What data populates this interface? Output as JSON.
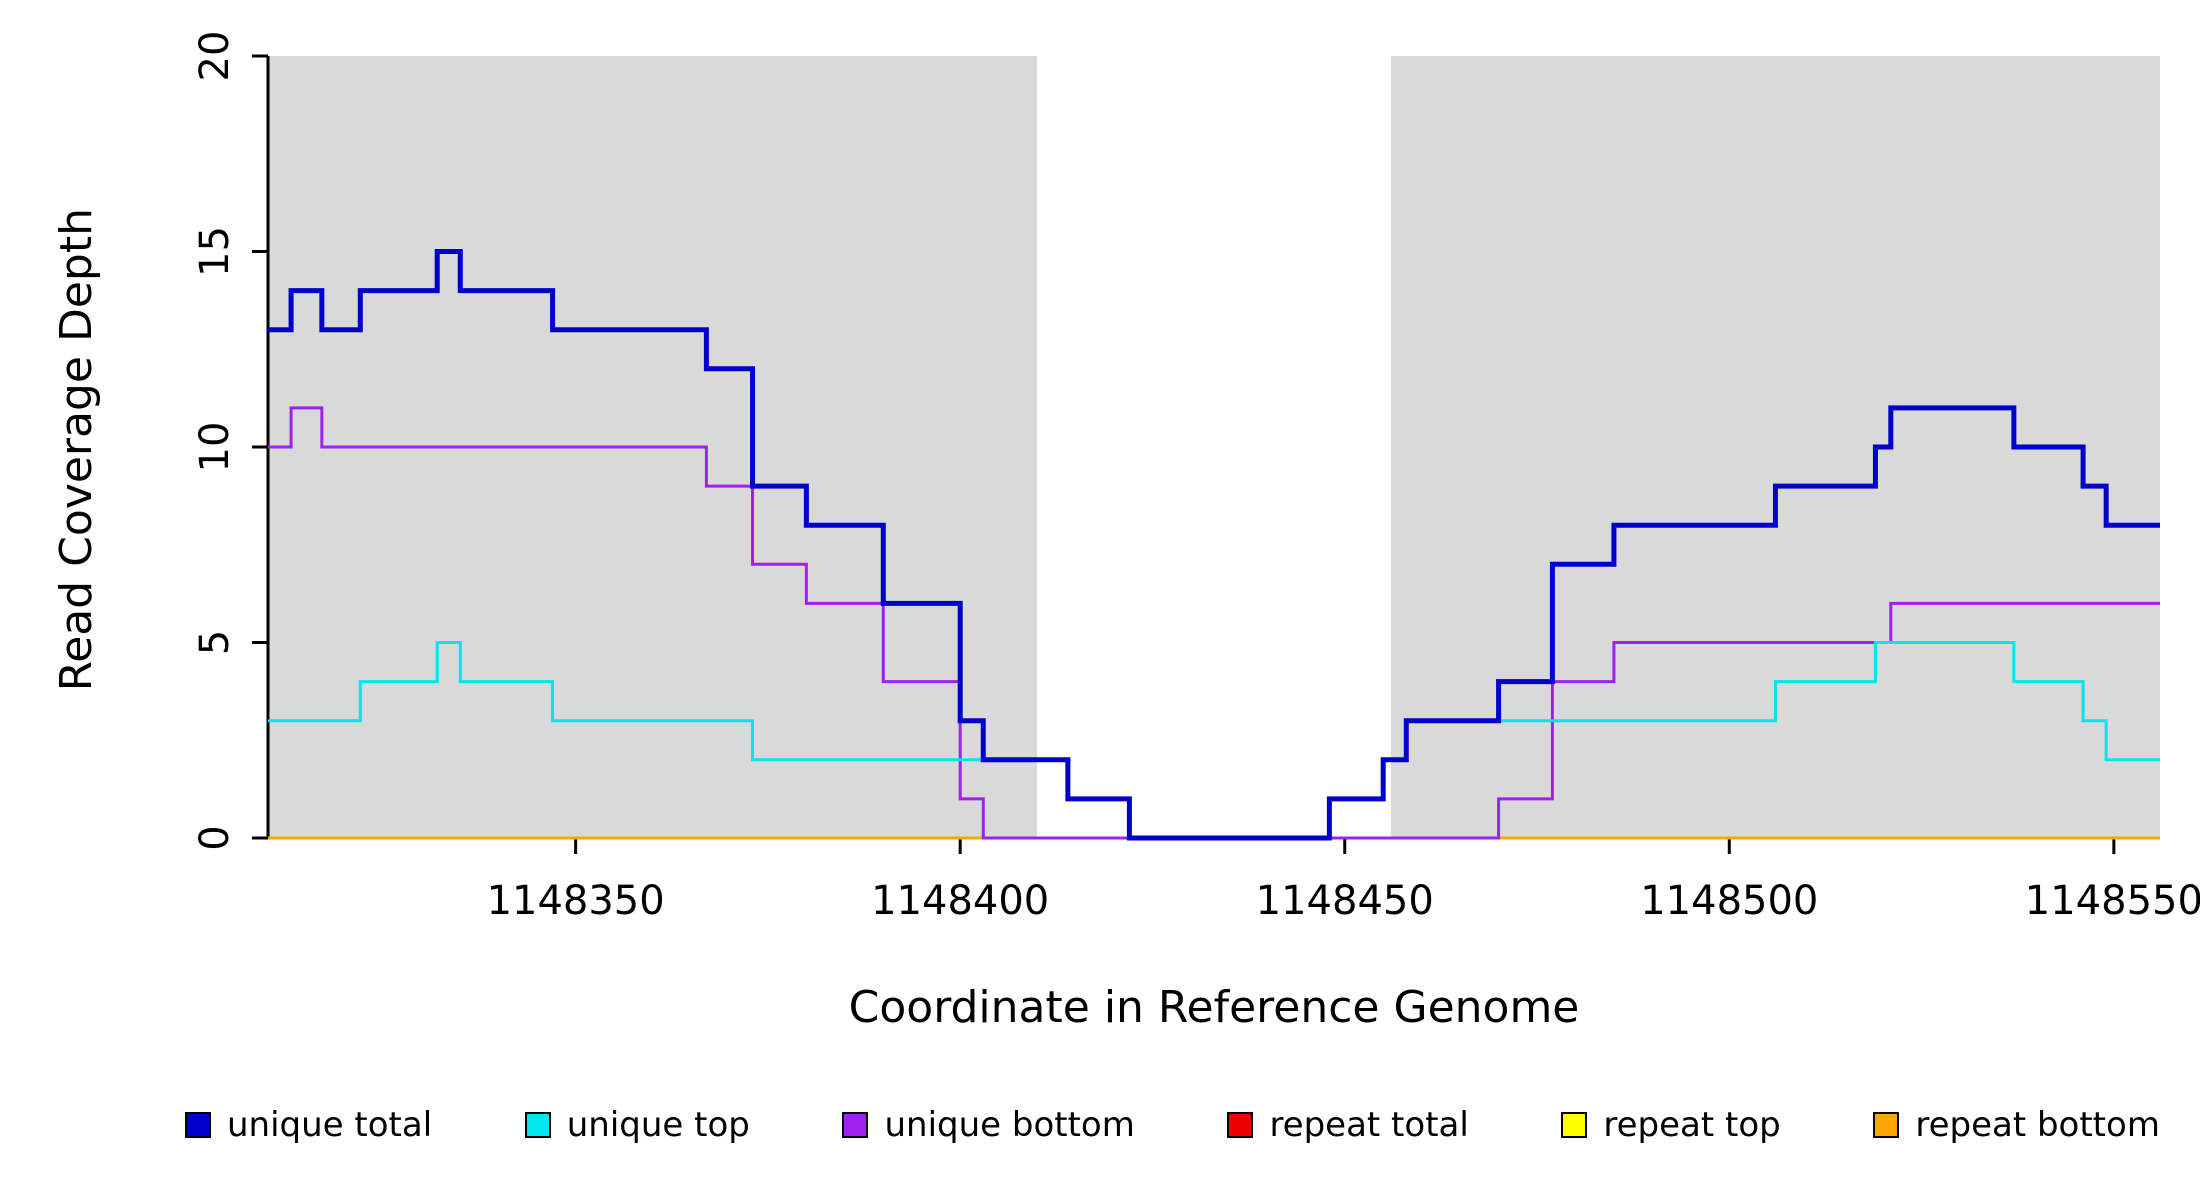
{
  "chart_data": {
    "type": "line",
    "subtype": "step-coverage",
    "title": "",
    "xlabel": "Coordinate in Reference Genome",
    "ylabel": "Read Coverage Depth",
    "xlim": [
      1148310,
      1148556
    ],
    "ylim": [
      0,
      20
    ],
    "x_ticks": [
      1148350,
      1148400,
      1148450,
      1148500,
      1148550
    ],
    "y_ticks": [
      0,
      5,
      10,
      15,
      20
    ],
    "grid": false,
    "legend_position": "bottom",
    "axis_color": "#000000",
    "shade_color": "#d9d9d9",
    "shaded_regions": [
      {
        "x0": 1148310,
        "x1": 1148410
      },
      {
        "x0": 1148456,
        "x1": 1148556
      }
    ],
    "draw_order": [
      3,
      4,
      5,
      2,
      1,
      0
    ],
    "series": [
      {
        "label": "unique total",
        "color": "#0000cd",
        "width": 5,
        "steps": [
          [
            1148310,
            13
          ],
          [
            1148313,
            14
          ],
          [
            1148317,
            13
          ],
          [
            1148322,
            14
          ],
          [
            1148332,
            15
          ],
          [
            1148335,
            14
          ],
          [
            1148347,
            13
          ],
          [
            1148367,
            12
          ],
          [
            1148373,
            9
          ],
          [
            1148380,
            8
          ],
          [
            1148390,
            6
          ],
          [
            1148400,
            3
          ],
          [
            1148403,
            2
          ],
          [
            1148414,
            1
          ],
          [
            1148422,
            0
          ],
          [
            1148448,
            1
          ],
          [
            1148455,
            2
          ],
          [
            1148458,
            3
          ],
          [
            1148470,
            4
          ],
          [
            1148477,
            7
          ],
          [
            1148485,
            8
          ],
          [
            1148506,
            9
          ],
          [
            1148519,
            10
          ],
          [
            1148521,
            11
          ],
          [
            1148537,
            10
          ],
          [
            1148546,
            9
          ],
          [
            1148549,
            8
          ]
        ]
      },
      {
        "label": "unique top",
        "color": "#00e5ee",
        "width": 3,
        "steps": [
          [
            1148310,
            3
          ],
          [
            1148322,
            4
          ],
          [
            1148332,
            5
          ],
          [
            1148335,
            4
          ],
          [
            1148347,
            3
          ],
          [
            1148373,
            2
          ],
          [
            1148414,
            1
          ],
          [
            1148422,
            0
          ],
          [
            1148448,
            1
          ],
          [
            1148455,
            2
          ],
          [
            1148458,
            3
          ],
          [
            1148506,
            4
          ],
          [
            1148519,
            5
          ],
          [
            1148537,
            4
          ],
          [
            1148546,
            3
          ],
          [
            1148549,
            2
          ]
        ]
      },
      {
        "label": "unique bottom",
        "color": "#a020f0",
        "width": 3,
        "steps": [
          [
            1148310,
            10
          ],
          [
            1148313,
            11
          ],
          [
            1148317,
            10
          ],
          [
            1148367,
            9
          ],
          [
            1148373,
            7
          ],
          [
            1148380,
            6
          ],
          [
            1148390,
            4
          ],
          [
            1148400,
            1
          ],
          [
            1148403,
            0
          ],
          [
            1148470,
            1
          ],
          [
            1148477,
            4
          ],
          [
            1148485,
            5
          ],
          [
            1148521,
            6
          ]
        ]
      },
      {
        "label": "repeat total",
        "color": "#ee0000",
        "width": 3,
        "steps": [
          [
            1148310,
            0
          ]
        ]
      },
      {
        "label": "repeat top",
        "color": "#ffff00",
        "width": 3,
        "steps": [
          [
            1148310,
            0
          ]
        ]
      },
      {
        "label": "repeat bottom",
        "color": "#ffa500",
        "width": 3,
        "steps": [
          [
            1148310,
            0
          ]
        ]
      }
    ]
  }
}
